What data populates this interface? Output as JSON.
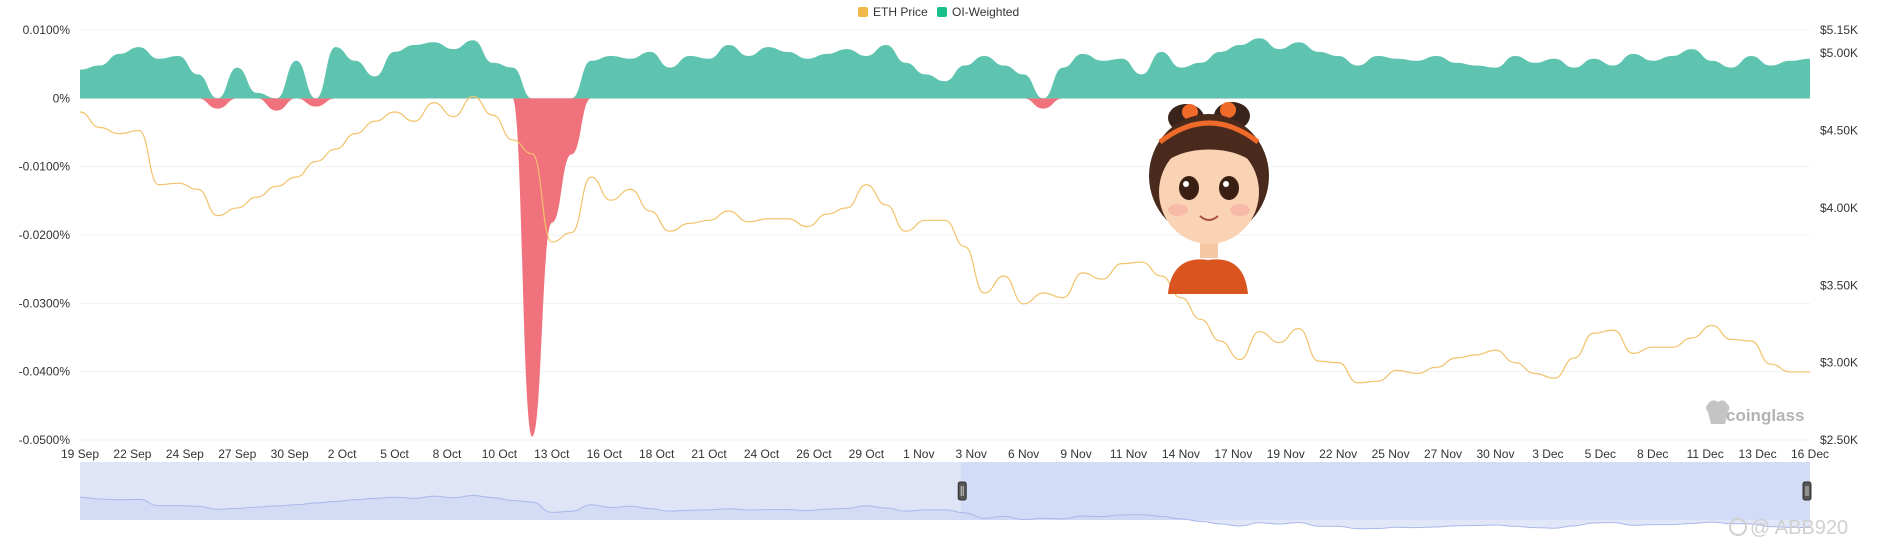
{
  "legend": {
    "eth_price": "ETH Price",
    "oi_weighted": "OI-Weighted"
  },
  "brand": "coinglass",
  "watermark": "@ ABB920",
  "colors": {
    "eth_price": "#f2c26b",
    "legend_eth": "#f0b94a",
    "oi_positive": "#5ec4b0",
    "legend_oi": "#19c08c",
    "oi_negative": "#f0727c",
    "navigator_fill": "#dfe5f7",
    "navigator_selected": "#d2dcf6",
    "navigator_line": "#a9b8ea"
  },
  "chart_data": {
    "type": "line",
    "x_ticks": [
      "19 Sep",
      "22 Sep",
      "24 Sep",
      "27 Sep",
      "30 Sep",
      "2 Oct",
      "5 Oct",
      "8 Oct",
      "10 Oct",
      "13 Oct",
      "16 Oct",
      "18 Oct",
      "21 Oct",
      "24 Oct",
      "26 Oct",
      "29 Oct",
      "1 Nov",
      "3 Nov",
      "6 Nov",
      "9 Nov",
      "11 Nov",
      "14 Nov",
      "17 Nov",
      "19 Nov",
      "22 Nov",
      "25 Nov",
      "27 Nov",
      "30 Nov",
      "3 Dec",
      "5 Dec",
      "8 Dec",
      "11 Dec",
      "13 Dec",
      "16 Dec"
    ],
    "y_left": {
      "label": "",
      "ticks": [
        "0.0100%",
        "0%",
        "-0.0100%",
        "-0.0200%",
        "-0.0300%",
        "-0.0400%",
        "-0.0500%"
      ],
      "range": [
        -0.05,
        0.01
      ]
    },
    "y_right": {
      "label": "",
      "ticks": [
        "$5.15K",
        "$5.00K",
        "$4.50K",
        "$4.00K",
        "$3.50K",
        "$3.00K",
        "$2.50K"
      ],
      "range": [
        2500,
        5150
      ]
    },
    "series": [
      {
        "name": "ETH Price",
        "axis": "right",
        "unit": "USD",
        "points": [
          [
            0,
            4620
          ],
          [
            1,
            4520
          ],
          [
            2,
            4480
          ],
          [
            3,
            4500
          ],
          [
            4,
            4150
          ],
          [
            5,
            4160
          ],
          [
            6,
            4120
          ],
          [
            7,
            3950
          ],
          [
            8,
            4000
          ],
          [
            9,
            4070
          ],
          [
            10,
            4140
          ],
          [
            11,
            4200
          ],
          [
            12,
            4300
          ],
          [
            13,
            4380
          ],
          [
            14,
            4480
          ],
          [
            15,
            4560
          ],
          [
            16,
            4620
          ],
          [
            17,
            4560
          ],
          [
            18,
            4680
          ],
          [
            19,
            4590
          ],
          [
            20,
            4720
          ],
          [
            21,
            4600
          ],
          [
            22,
            4440
          ],
          [
            23,
            4350
          ],
          [
            24,
            3780
          ],
          [
            25,
            3840
          ],
          [
            26,
            4200
          ],
          [
            27,
            4050
          ],
          [
            28,
            4120
          ],
          [
            29,
            3980
          ],
          [
            30,
            3850
          ],
          [
            31,
            3900
          ],
          [
            32,
            3920
          ],
          [
            33,
            3980
          ],
          [
            34,
            3910
          ],
          [
            35,
            3930
          ],
          [
            36,
            3930
          ],
          [
            37,
            3880
          ],
          [
            38,
            3960
          ],
          [
            39,
            4000
          ],
          [
            40,
            4150
          ],
          [
            41,
            4020
          ],
          [
            42,
            3850
          ],
          [
            43,
            3920
          ],
          [
            44,
            3920
          ],
          [
            45,
            3750
          ],
          [
            46,
            3450
          ],
          [
            47,
            3560
          ],
          [
            48,
            3380
          ],
          [
            49,
            3450
          ],
          [
            50,
            3420
          ],
          [
            51,
            3580
          ],
          [
            52,
            3540
          ],
          [
            53,
            3640
          ],
          [
            54,
            3650
          ],
          [
            55,
            3560
          ],
          [
            56,
            3420
          ],
          [
            57,
            3280
          ],
          [
            58,
            3140
          ],
          [
            59,
            3020
          ],
          [
            60,
            3200
          ],
          [
            61,
            3130
          ],
          [
            62,
            3220
          ],
          [
            63,
            3010
          ],
          [
            64,
            3000
          ],
          [
            65,
            2870
          ],
          [
            66,
            2880
          ],
          [
            67,
            2950
          ],
          [
            68,
            2930
          ],
          [
            69,
            2970
          ],
          [
            70,
            3030
          ],
          [
            71,
            3050
          ],
          [
            72,
            3080
          ],
          [
            73,
            3000
          ],
          [
            74,
            2930
          ],
          [
            75,
            2900
          ],
          [
            76,
            3030
          ],
          [
            77,
            3190
          ],
          [
            78,
            3210
          ],
          [
            79,
            3060
          ],
          [
            80,
            3100
          ],
          [
            81,
            3100
          ],
          [
            82,
            3160
          ],
          [
            83,
            3240
          ],
          [
            84,
            3150
          ],
          [
            85,
            3140
          ],
          [
            86,
            2990
          ],
          [
            87,
            2940
          ],
          [
            88,
            2940
          ]
        ]
      },
      {
        "name": "OI-Weighted",
        "axis": "left",
        "unit": "%",
        "points": [
          [
            0,
            0.0042
          ],
          [
            1,
            0.0048
          ],
          [
            2,
            0.0065
          ],
          [
            3,
            0.0075
          ],
          [
            4,
            0.0058
          ],
          [
            5,
            0.0062
          ],
          [
            6,
            0.0035
          ],
          [
            7,
            -0.0015
          ],
          [
            8,
            0.0045
          ],
          [
            9,
            0.0008
          ],
          [
            10,
            -0.0018
          ],
          [
            11,
            0.0055
          ],
          [
            12,
            -0.0012
          ],
          [
            13,
            0.0075
          ],
          [
            14,
            0.0055
          ],
          [
            15,
            0.0032
          ],
          [
            16,
            0.0068
          ],
          [
            17,
            0.0078
          ],
          [
            18,
            0.0082
          ],
          [
            19,
            0.0072
          ],
          [
            20,
            0.0085
          ],
          [
            21,
            0.0052
          ],
          [
            22,
            0.0045
          ],
          [
            23,
            -0.0495
          ],
          [
            24,
            -0.0182
          ],
          [
            25,
            -0.0082
          ],
          [
            26,
            0.0055
          ],
          [
            27,
            0.0062
          ],
          [
            28,
            0.0058
          ],
          [
            29,
            0.0068
          ],
          [
            30,
            0.0045
          ],
          [
            31,
            0.0062
          ],
          [
            32,
            0.0058
          ],
          [
            33,
            0.0078
          ],
          [
            34,
            0.0062
          ],
          [
            35,
            0.0075
          ],
          [
            36,
            0.0068
          ],
          [
            37,
            0.0058
          ],
          [
            38,
            0.0065
          ],
          [
            39,
            0.0072
          ],
          [
            40,
            0.0062
          ],
          [
            41,
            0.0078
          ],
          [
            42,
            0.0052
          ],
          [
            43,
            0.0035
          ],
          [
            44,
            0.0025
          ],
          [
            45,
            0.0048
          ],
          [
            46,
            0.0062
          ],
          [
            47,
            0.0048
          ],
          [
            48,
            0.0035
          ],
          [
            49,
            -0.0015
          ],
          [
            50,
            0.0045
          ],
          [
            51,
            0.0065
          ],
          [
            52,
            0.0055
          ],
          [
            53,
            0.0058
          ],
          [
            54,
            0.0035
          ],
          [
            55,
            0.0068
          ],
          [
            56,
            0.0045
          ],
          [
            57,
            0.0052
          ],
          [
            58,
            0.0068
          ],
          [
            59,
            0.0078
          ],
          [
            60,
            0.0088
          ],
          [
            61,
            0.0072
          ],
          [
            62,
            0.0082
          ],
          [
            63,
            0.0068
          ],
          [
            64,
            0.0062
          ],
          [
            65,
            0.0048
          ],
          [
            66,
            0.0062
          ],
          [
            67,
            0.0058
          ],
          [
            68,
            0.0055
          ],
          [
            69,
            0.0062
          ],
          [
            70,
            0.0052
          ],
          [
            71,
            0.0048
          ],
          [
            72,
            0.0045
          ],
          [
            73,
            0.0062
          ],
          [
            74,
            0.0052
          ],
          [
            75,
            0.0058
          ],
          [
            76,
            0.0045
          ],
          [
            77,
            0.0058
          ],
          [
            78,
            0.0048
          ],
          [
            79,
            0.0065
          ],
          [
            80,
            0.0055
          ],
          [
            81,
            0.0062
          ],
          [
            82,
            0.0072
          ],
          [
            83,
            0.0055
          ],
          [
            84,
            0.0045
          ],
          [
            85,
            0.0062
          ],
          [
            86,
            0.0048
          ],
          [
            87,
            0.0055
          ],
          [
            88,
            0.0058
          ]
        ]
      }
    ],
    "navigator": {
      "selection_start_tick": 17,
      "selection_end_tick": 33
    }
  }
}
